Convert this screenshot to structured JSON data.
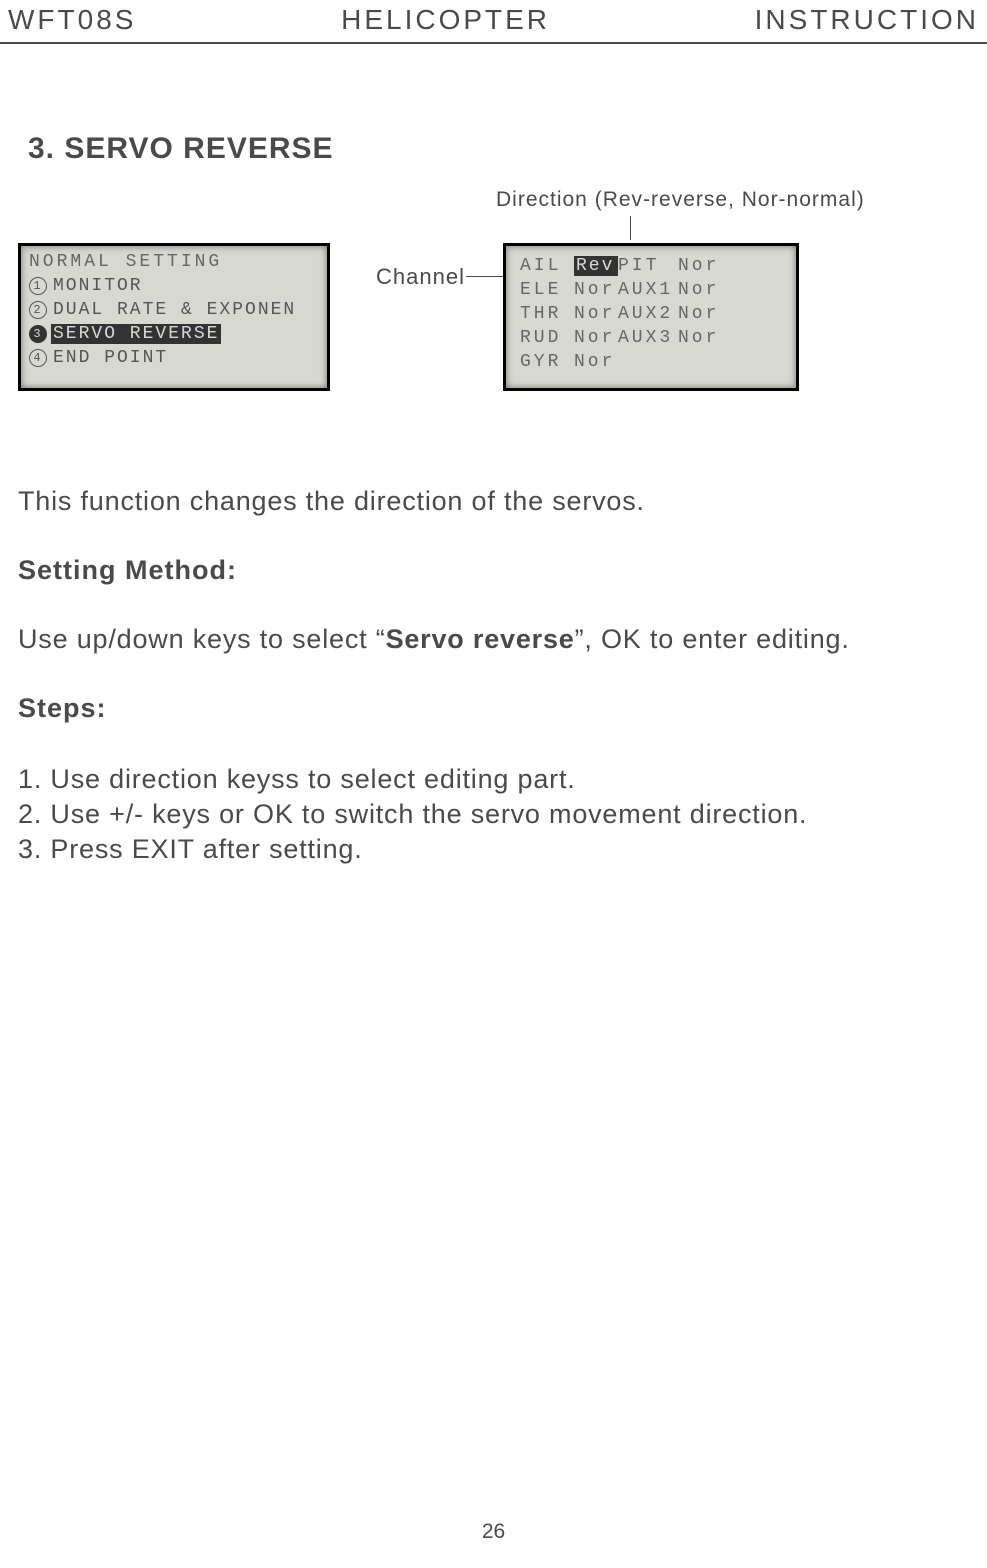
{
  "header": {
    "left": "WFT08S",
    "center": "HELICOPTER",
    "right": "INSTRUCTION"
  },
  "section_title": "3. SERVO REVERSE",
  "labels": {
    "direction": "Direction (Rev-reverse, Nor-normal)",
    "channel": "Channel"
  },
  "lcd_left": {
    "title": "NORMAL SETTING",
    "items": [
      {
        "num": "1",
        "label": "MONITOR",
        "selected": false
      },
      {
        "num": "2",
        "label": "DUAL RATE & EXPONEN",
        "selected": false
      },
      {
        "num": "3",
        "label": "SERVO REVERSE",
        "selected": true
      },
      {
        "num": "4",
        "label": "END POINT",
        "selected": false
      }
    ]
  },
  "lcd_right": {
    "rows": [
      {
        "c1": "AIL",
        "v1": "Rev",
        "v1_selected": true,
        "c2": "PIT",
        "v2": "Nor"
      },
      {
        "c1": "ELE",
        "v1": "Nor",
        "v1_selected": false,
        "c2": "AUX1",
        "v2": "Nor"
      },
      {
        "c1": "THR",
        "v1": "Nor",
        "v1_selected": false,
        "c2": "AUX2",
        "v2": "Nor"
      },
      {
        "c1": "RUD",
        "v1": "Nor",
        "v1_selected": false,
        "c2": "AUX3",
        "v2": "Nor"
      },
      {
        "c1": "GYR",
        "v1": "Nor",
        "v1_selected": false,
        "c2": "",
        "v2": ""
      }
    ]
  },
  "intro": "This function changes the direction of the servos.",
  "setting_method_head": "Setting Method:",
  "setting_method_body_pre": "Use up/down keys to select “",
  "setting_method_body_bold": "Servo reverse",
  "setting_method_body_post": "”, OK to enter editing.",
  "steps_head": "Steps:",
  "steps": [
    "1. Use direction keyss to select editing part.",
    "2. Use +/- keys or OK to switch the servo movement direction.",
    "3. Press EXIT after setting."
  ],
  "page_number": "26"
}
